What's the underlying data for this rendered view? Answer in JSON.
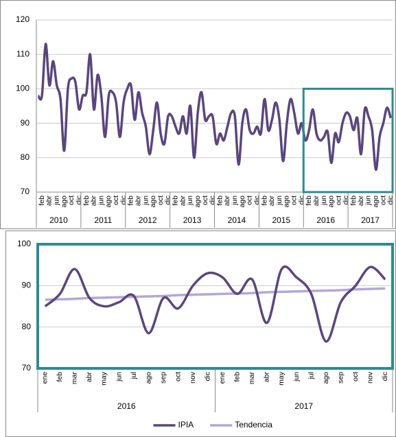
{
  "chart_data": [
    {
      "type": "line",
      "categories": [
        null,
        "feb",
        null,
        "abr",
        null,
        "jun",
        null,
        "ago",
        null,
        "oct",
        null,
        "dic",
        null,
        "feb",
        null,
        "abr",
        null,
        "jun",
        null,
        "ago",
        null,
        "oct",
        null,
        "dic",
        null,
        "feb",
        null,
        "abr",
        null,
        "jun",
        null,
        "ago",
        null,
        "oct",
        null,
        "dic",
        null,
        "feb",
        null,
        "abr",
        null,
        "jun",
        null,
        "ago",
        null,
        "oct",
        null,
        "dic",
        null,
        "feb",
        null,
        "abr",
        null,
        "jun",
        null,
        "ago",
        null,
        "oct",
        null,
        "dic",
        null,
        "feb",
        null,
        "abr",
        null,
        "jun",
        null,
        "ago",
        null,
        "oct",
        null,
        "dic",
        null,
        "feb",
        null,
        "abr",
        null,
        "jun",
        null,
        "ago",
        null,
        "oct",
        null,
        "dic",
        null,
        "feb",
        null,
        "abr",
        null,
        "jun",
        null,
        "ago",
        null,
        "oct",
        null,
        "dic"
      ],
      "groups": [
        "2010",
        "2011",
        "2012",
        "2013",
        "2014",
        "2015",
        "2016",
        "2017"
      ],
      "series": [
        {
          "name": "IPIA",
          "color": "#5a467c",
          "values": [
            98,
            98,
            113,
            101,
            108,
            101,
            97,
            82,
            100,
            103,
            102,
            94,
            98,
            99,
            110,
            94,
            104,
            98,
            86,
            98,
            99,
            96,
            86,
            96,
            100,
            101,
            91,
            99,
            93,
            89,
            81,
            88,
            96,
            87,
            84,
            92,
            92,
            89,
            87,
            92,
            87,
            95,
            80,
            93,
            99,
            91,
            92,
            92,
            84,
            87,
            85,
            89,
            93,
            92,
            78,
            90,
            94,
            88,
            87,
            89,
            87,
            97,
            88,
            91,
            96,
            91,
            79,
            90,
            97,
            93,
            87,
            90,
            85,
            88,
            94,
            87,
            85,
            86,
            87.5,
            78.5,
            87,
            84.5,
            90,
            93,
            92,
            88,
            91.5,
            81,
            94,
            92,
            88,
            76.5,
            86,
            90,
            94.5,
            91.5
          ]
        }
      ],
      "ylim": [
        70,
        120
      ],
      "yticks": [
        70,
        80,
        90,
        100,
        110,
        120
      ],
      "grid": true
    },
    {
      "type": "line",
      "categories": [
        "ene",
        "feb",
        "mar",
        "abr",
        "may",
        "jun",
        "jul",
        "ago",
        "sep",
        "oct",
        "nov",
        "dic",
        "ene",
        "feb",
        "mar",
        "abr",
        "may",
        "jun",
        "jul",
        "ago",
        "sep",
        "oct",
        "nov",
        "dic"
      ],
      "groups": [
        "2016",
        "2017"
      ],
      "series": [
        {
          "name": "IPIA",
          "color": "#5a467c",
          "values": [
            85,
            88,
            94,
            87,
            85,
            86,
            87.5,
            78.5,
            87,
            84.5,
            90,
            93,
            92,
            88,
            91.5,
            81,
            94,
            92,
            88,
            76.5,
            86,
            90,
            94.5,
            91.5
          ]
        },
        {
          "name": "Tendencia",
          "color": "#b4a7d6",
          "values": [
            86.6,
            86.7,
            86.8,
            87.0,
            87.1,
            87.2,
            87.3,
            87.4,
            87.5,
            87.7,
            87.8,
            87.9,
            88.0,
            88.1,
            88.2,
            88.4,
            88.5,
            88.6,
            88.7,
            88.8,
            88.9,
            89.1,
            89.2,
            89.3
          ]
        }
      ],
      "ylim": [
        70,
        100
      ],
      "yticks": [
        70,
        80,
        90,
        100
      ],
      "grid": true,
      "legend": "bottom"
    }
  ]
}
